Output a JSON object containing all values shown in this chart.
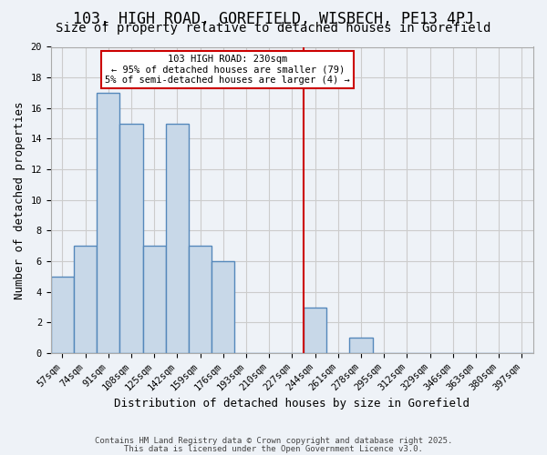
{
  "title": "103, HIGH ROAD, GOREFIELD, WISBECH, PE13 4PJ",
  "subtitle": "Size of property relative to detached houses in Gorefield",
  "xlabel": "Distribution of detached houses by size in Gorefield",
  "ylabel": "Number of detached properties",
  "bin_labels": [
    "57sqm",
    "74sqm",
    "91sqm",
    "108sqm",
    "125sqm",
    "142sqm",
    "159sqm",
    "176sqm",
    "193sqm",
    "210sqm",
    "227sqm",
    "244sqm",
    "261sqm",
    "278sqm",
    "295sqm",
    "312sqm",
    "329sqm",
    "346sqm",
    "363sqm",
    "380sqm",
    "397sqm"
  ],
  "bar_heights": [
    5,
    7,
    17,
    15,
    7,
    15,
    7,
    6,
    0,
    0,
    0,
    3,
    0,
    1,
    0,
    0,
    0,
    0,
    0,
    0,
    0
  ],
  "bar_color": "#c8d8e8",
  "bar_edge_color": "#5588bb",
  "bar_edge_width": 1.0,
  "grid_color": "#cccccc",
  "bg_color": "#eef2f7",
  "red_line_x": 10.5,
  "annotation_title": "103 HIGH ROAD: 230sqm",
  "annotation_line1": "← 95% of detached houses are smaller (79)",
  "annotation_line2": "5% of semi-detached houses are larger (4) →",
  "annotation_box_color": "#ffffff",
  "annotation_text_color": "#000000",
  "red_color": "#cc0000",
  "ylim": [
    0,
    20
  ],
  "yticks": [
    0,
    2,
    4,
    6,
    8,
    10,
    12,
    14,
    16,
    18,
    20
  ],
  "footer_line1": "Contains HM Land Registry data © Crown copyright and database right 2025.",
  "footer_line2": "This data is licensed under the Open Government Licence v3.0.",
  "title_fontsize": 12,
  "subtitle_fontsize": 10,
  "xlabel_fontsize": 9,
  "ylabel_fontsize": 9,
  "tick_fontsize": 7.5,
  "footer_fontsize": 6.5
}
